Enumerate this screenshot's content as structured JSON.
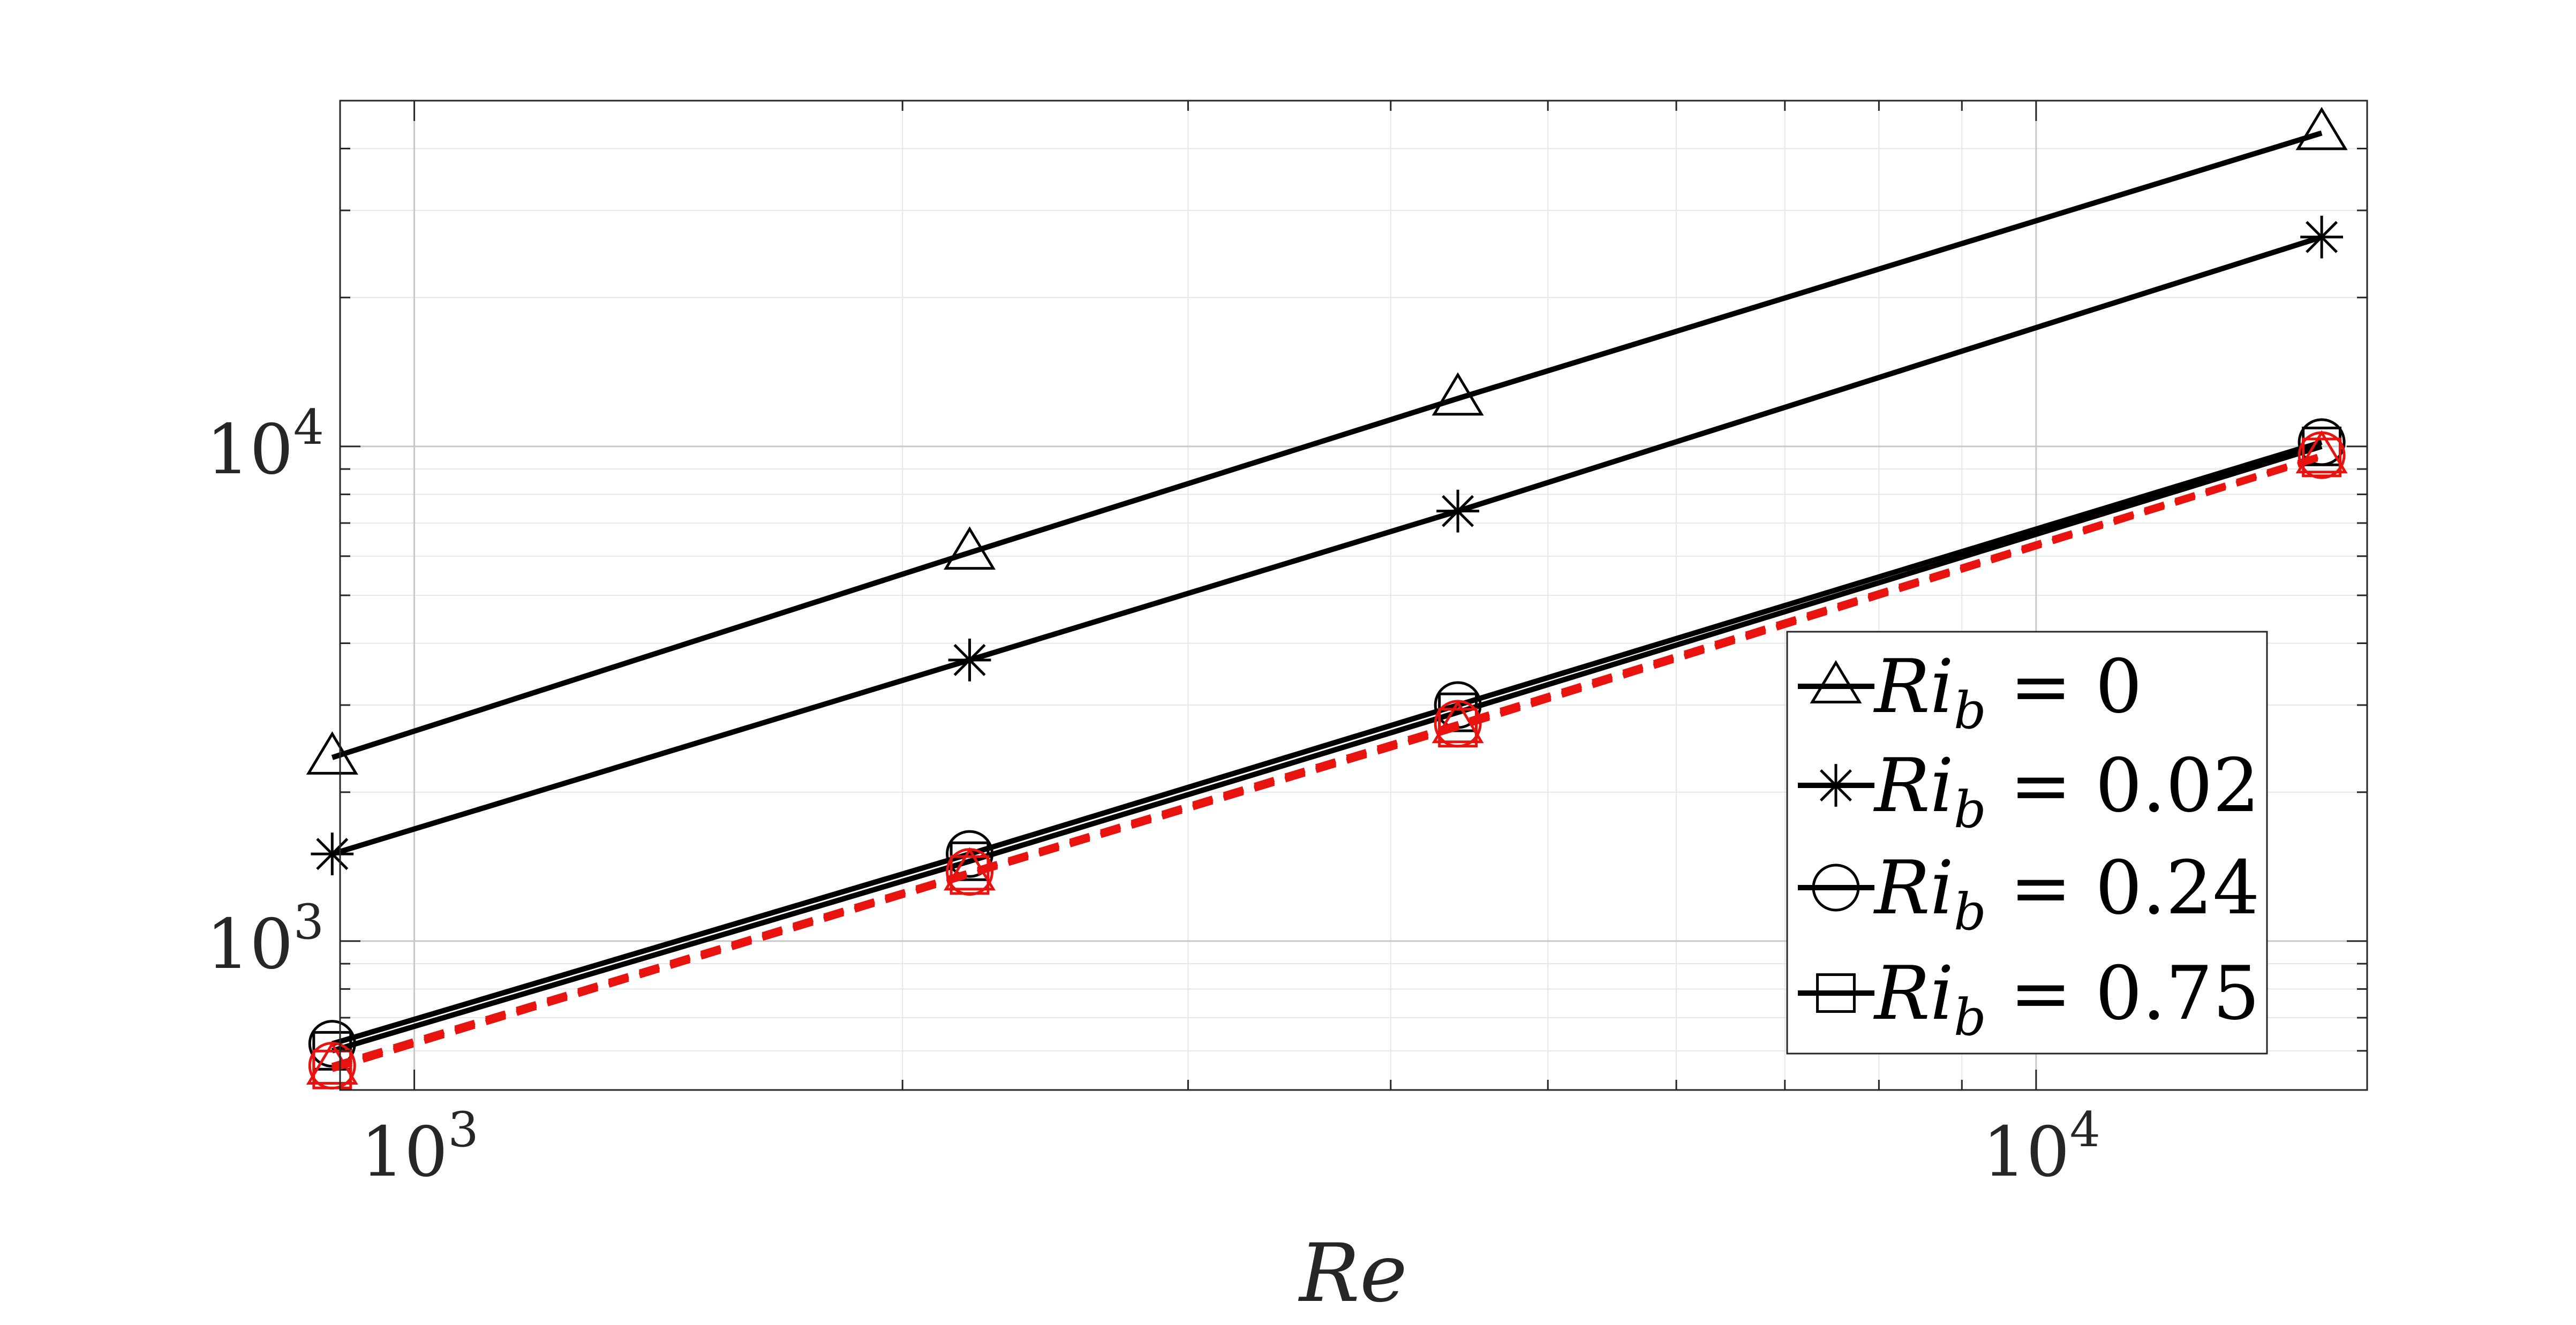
{
  "chart_data": {
    "type": "line",
    "title": "",
    "xlabel": "Re",
    "ylabel": "",
    "xscale": "log",
    "yscale": "log",
    "xlim": [
      900,
      16000
    ],
    "ylim": [
      500,
      50000
    ],
    "grid": true,
    "legend_position": "bottom-right",
    "x_ticks": [
      {
        "value": 1000,
        "base": "10",
        "exp": "3"
      },
      {
        "value": 10000,
        "base": "10",
        "exp": "4"
      }
    ],
    "y_ticks": [
      {
        "value": 1000,
        "base": "10",
        "exp": "3"
      },
      {
        "value": 10000,
        "base": "10",
        "exp": "4"
      }
    ],
    "x": [
      890,
      2200,
      4400,
      15000
    ],
    "series": [
      {
        "name": "Ri_b = 0",
        "legend": {
          "var": "Ri",
          "sub": "b",
          "val": "= 0"
        },
        "marker": "triangle",
        "color": "#000000",
        "dash": "solid",
        "values": [
          2350,
          6100,
          12500,
          43000
        ]
      },
      {
        "name": "Ri_b = 0.02",
        "legend": {
          "var": "Ri",
          "sub": "b",
          "val": "= 0.02"
        },
        "marker": "star",
        "color": "#000000",
        "dash": "solid",
        "values": [
          1500,
          3700,
          7400,
          26500
        ]
      },
      {
        "name": "Ri_b = 0.24",
        "legend": {
          "var": "Ri",
          "sub": "b",
          "val": "= 0.24"
        },
        "marker": "circle",
        "color": "#000000",
        "dash": "solid",
        "values": [
          620,
          1500,
          3000,
          10200
        ]
      },
      {
        "name": "Ri_b = 0.75",
        "legend": {
          "var": "Ri",
          "sub": "b",
          "val": "= 0.75"
        },
        "marker": "square",
        "color": "#000000",
        "dash": "solid",
        "values": [
          600,
          1450,
          2900,
          10000
        ]
      },
      {
        "name": "",
        "legend": null,
        "marker": "circle",
        "color": "#e8130f",
        "dash": "dashed",
        "values": [
          560,
          1380,
          2750,
          9600
        ]
      },
      {
        "name": "",
        "legend": null,
        "marker": "square",
        "color": "#e8130f",
        "dash": "dashed",
        "values": [
          550,
          1360,
          2700,
          9500
        ]
      },
      {
        "name": "",
        "legend": null,
        "marker": "triangle",
        "color": "#e8130f",
        "dash": "dashed",
        "values": [
          555,
          1370,
          2720,
          9550
        ]
      }
    ]
  }
}
